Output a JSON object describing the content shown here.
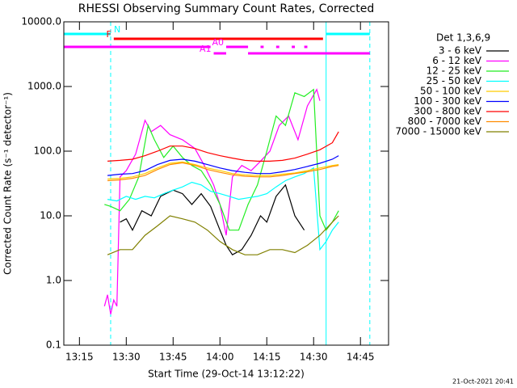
{
  "chart_data": {
    "type": "line",
    "title": "RHESSI Observing Summary Count Rates, Corrected",
    "xlabel": "Start Time (29-Oct-14 13:12:22)",
    "ylabel": "Corrected Count Rate (s⁻¹ detector⁻¹)",
    "legend_title": "Det 1,3,6,9",
    "footer": "21-Oct-2021 20:41",
    "log_y": true,
    "xlim": [
      "13:10",
      "14:54"
    ],
    "xticks": [
      "13:15",
      "13:30",
      "13:45",
      "14:00",
      "14:15",
      "14:30",
      "14:45"
    ],
    "ylim": [
      0.1,
      10000
    ],
    "yticks": [
      0.1,
      {
        "value": 1,
        "label": "1.0"
      },
      {
        "value": 10,
        "label": "10.0"
      },
      {
        "value": 100,
        "label": "100.0"
      },
      {
        "value": 1000,
        "label": "1000.0"
      },
      {
        "value": 10000,
        "label": "10000.0"
      }
    ],
    "series": [
      {
        "name": "3 - 6 keV",
        "color": "#000000",
        "x": [
          "13:28",
          "13:30",
          "13:32",
          "13:35",
          "13:38",
          "13:41",
          "13:45",
          "13:48",
          "13:51",
          "13:54",
          "13:57",
          "14:00",
          "14:02",
          "14:04",
          "14:07",
          "14:10",
          "14:13",
          "14:15",
          "14:18",
          "14:21",
          "14:24",
          "14:27"
        ],
        "values": [
          8,
          9,
          6,
          12,
          10,
          20,
          25,
          22,
          15,
          22,
          14,
          6,
          3.5,
          2.5,
          3,
          5,
          10,
          8,
          20,
          30,
          10,
          6
        ]
      },
      {
        "name": "6 - 12 keV",
        "color": "#ff00ff",
        "x": [
          "13:23",
          "13:24",
          "13:25",
          "13:26",
          "13:27",
          "13:28",
          "13:30",
          "13:33",
          "13:36",
          "13:38",
          "13:41",
          "13:44",
          "13:48",
          "13:52",
          "13:55",
          "13:58",
          "14:00",
          "14:02",
          "14:04",
          "14:07",
          "14:10",
          "14:13",
          "14:16",
          "14:19",
          "14:22",
          "14:25",
          "14:28",
          "14:31",
          "14:32"
        ],
        "values": [
          0.4,
          0.6,
          0.3,
          0.5,
          0.4,
          40,
          50,
          90,
          300,
          200,
          250,
          180,
          150,
          110,
          60,
          30,
          15,
          5,
          40,
          60,
          50,
          70,
          100,
          250,
          350,
          150,
          500,
          900,
          600
        ]
      },
      {
        "name": "12 - 25 keV",
        "color": "#22ee22",
        "x": [
          "13:23",
          "13:25",
          "13:28",
          "13:31",
          "13:34",
          "13:37",
          "13:39",
          "13:42",
          "13:45",
          "13:48",
          "13:51",
          "13:54",
          "13:57",
          "14:00",
          "14:03",
          "14:06",
          "14:09",
          "14:12",
          "14:15",
          "14:18",
          "14:21",
          "14:24",
          "14:27",
          "14:30",
          "14:32",
          "14:34",
          "14:36",
          "14:38"
        ],
        "values": [
          15,
          14,
          12,
          18,
          40,
          250,
          150,
          80,
          120,
          80,
          60,
          50,
          30,
          15,
          6,
          6,
          15,
          30,
          100,
          350,
          250,
          800,
          700,
          900,
          10,
          6,
          8,
          12
        ]
      },
      {
        "name": "25 - 50 keV",
        "color": "#00ffff",
        "x": [
          "13:24",
          "13:27",
          "13:30",
          "13:33",
          "13:36",
          "13:39",
          "13:42",
          "13:45",
          "13:48",
          "13:51",
          "13:54",
          "13:57",
          "14:00",
          "14:03",
          "14:06",
          "14:09",
          "14:12",
          "14:15",
          "14:18",
          "14:21",
          "14:24",
          "14:27",
          "14:30",
          "14:32",
          "14:34",
          "14:36",
          "14:38"
        ],
        "values": [
          18,
          17,
          20,
          18,
          20,
          19,
          22,
          25,
          28,
          33,
          30,
          24,
          22,
          20,
          18,
          19,
          20,
          22,
          28,
          35,
          40,
          45,
          55,
          3,
          4,
          6,
          8
        ]
      },
      {
        "name": "50 - 100 keV",
        "color": "#ffcc00",
        "x": [
          "13:24",
          "13:28",
          "13:32",
          "13:36",
          "13:40",
          "13:44",
          "13:48",
          "13:52",
          "13:56",
          "14:00",
          "14:04",
          "14:08",
          "14:12",
          "14:16",
          "14:20",
          "14:24",
          "14:28",
          "14:32",
          "14:36",
          "14:38"
        ],
        "values": [
          37,
          38,
          40,
          45,
          55,
          65,
          68,
          62,
          55,
          50,
          45,
          43,
          42,
          42,
          44,
          46,
          50,
          55,
          60,
          62
        ]
      },
      {
        "name": "100 - 300 keV",
        "color": "#0000ff",
        "x": [
          "13:24",
          "13:28",
          "13:32",
          "13:36",
          "13:40",
          "13:44",
          "13:48",
          "13:52",
          "13:56",
          "14:00",
          "14:04",
          "14:08",
          "14:12",
          "14:16",
          "14:20",
          "14:24",
          "14:28",
          "14:32",
          "14:36",
          "14:38"
        ],
        "values": [
          42,
          44,
          45,
          50,
          62,
          72,
          75,
          70,
          62,
          55,
          50,
          47,
          45,
          45,
          48,
          52,
          58,
          65,
          75,
          85
        ]
      },
      {
        "name": "300 - 800 keV",
        "color": "#ff0000",
        "x": [
          "13:24",
          "13:28",
          "13:32",
          "13:36",
          "13:40",
          "13:44",
          "13:48",
          "13:52",
          "13:56",
          "14:00",
          "14:04",
          "14:08",
          "14:12",
          "14:16",
          "14:20",
          "14:24",
          "14:28",
          "14:32",
          "14:36",
          "14:38"
        ],
        "values": [
          70,
          72,
          75,
          85,
          100,
          120,
          120,
          110,
          95,
          85,
          78,
          72,
          70,
          70,
          72,
          78,
          90,
          105,
          135,
          200
        ]
      },
      {
        "name": "800 - 7000 keV",
        "color": "#ff8c00",
        "x": [
          "13:24",
          "13:28",
          "13:32",
          "13:36",
          "13:40",
          "13:44",
          "13:48",
          "13:52",
          "13:56",
          "14:00",
          "14:04",
          "14:08",
          "14:12",
          "14:16",
          "14:20",
          "14:24",
          "14:28",
          "14:32",
          "14:36",
          "14:38"
        ],
        "values": [
          35,
          36,
          38,
          42,
          52,
          62,
          66,
          60,
          52,
          47,
          43,
          41,
          40,
          40,
          42,
          45,
          48,
          52,
          58,
          60
        ]
      },
      {
        "name": "7000 - 15000 keV",
        "color": "#808000",
        "x": [
          "13:24",
          "13:28",
          "13:32",
          "13:36",
          "13:40",
          "13:44",
          "13:48",
          "13:52",
          "13:56",
          "14:00",
          "14:04",
          "14:08",
          "14:12",
          "14:16",
          "14:20",
          "14:24",
          "14:28",
          "14:32",
          "14:36",
          "14:38"
        ],
        "values": [
          2.5,
          3,
          3,
          5,
          7,
          10,
          9,
          8,
          6,
          4,
          3,
          2.5,
          2.5,
          3,
          3,
          2.7,
          3.5,
          5,
          8,
          10
        ]
      }
    ],
    "flags": [
      {
        "label": "N",
        "color": "#00ffff",
        "ranges": [
          [
            "13:10",
            "13:25"
          ],
          [
            "14:34",
            "14:48"
          ]
        ]
      },
      {
        "label": "F",
        "color": "#ff0000",
        "ranges": [
          [
            "13:26",
            "14:33"
          ]
        ]
      },
      {
        "label": "A0",
        "color": "#ff00ff",
        "ranges": [
          [
            "13:10",
            "13:57"
          ],
          [
            "14:02",
            "14:09"
          ],
          [
            "14:13",
            "14:14"
          ],
          [
            "14:18",
            "14:19"
          ],
          [
            "14:23",
            "14:24"
          ],
          [
            "14:27",
            "14:28"
          ]
        ]
      },
      {
        "label": "A1",
        "color": "#ff00ff",
        "ranges": [
          [
            "13:58",
            "14:02"
          ],
          [
            "14:09",
            "14:48"
          ]
        ]
      }
    ],
    "vlines": [
      {
        "x": "13:10",
        "color": "#00ffff",
        "style": "solid"
      },
      {
        "x": "13:25",
        "color": "#00ffff",
        "style": "dashed"
      },
      {
        "x": "14:34",
        "color": "#00ffff",
        "style": "solid"
      },
      {
        "x": "14:48",
        "color": "#00ffff",
        "style": "dashed"
      }
    ]
  }
}
